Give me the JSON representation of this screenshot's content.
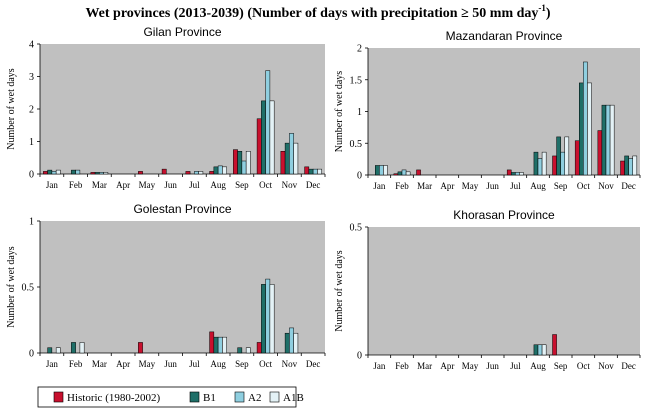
{
  "figure": {
    "title_main": "Wet provinces (2013-2039) (Number of days with precipitation ≥ 50 mm day",
    "title_sup": "-1",
    "title_end": ")"
  },
  "colors": {
    "plot_bg": "#c0c0c0",
    "Historic (1980-2002)": "#c8102e",
    "B1": "#1f6f68",
    "A2": "#8fcfe0",
    "A1B": "#e4f2f6"
  },
  "legend": {
    "items": [
      {
        "name": "Historic (1980-2002)",
        "color": "#c8102e"
      },
      {
        "name": "B1",
        "color": "#1f6f68"
      },
      {
        "name": "A2",
        "color": "#8fcfe0"
      },
      {
        "name": "A1B",
        "color": "#e4f2f6"
      }
    ]
  },
  "chart_data": [
    {
      "type": "bar",
      "title": "Gilan Province",
      "ylabel": "Number of wet days",
      "ylim": [
        0,
        4
      ],
      "yticks": [
        0,
        1,
        2,
        3,
        4
      ],
      "categories": [
        "Jan",
        "Feb",
        "Mar",
        "Apr",
        "May",
        "Jun",
        "Jul",
        "Aug",
        "Sep",
        "Oct",
        "Nov",
        "Dec"
      ],
      "series": [
        {
          "name": "Historic (1980-2002)",
          "values": [
            0.08,
            0,
            0.05,
            0,
            0.08,
            0.15,
            0.08,
            0.08,
            0.75,
            1.7,
            0.7,
            0.22
          ]
        },
        {
          "name": "B1",
          "values": [
            0.12,
            0.12,
            0.05,
            0,
            0,
            0,
            0,
            0.22,
            0.7,
            2.25,
            0.95,
            0.15
          ]
        },
        {
          "name": "A2",
          "values": [
            0.08,
            0.12,
            0.05,
            0,
            0,
            0,
            0.08,
            0.25,
            0.4,
            3.18,
            1.25,
            0.15
          ]
        },
        {
          "name": "A1B",
          "values": [
            0.12,
            0,
            0.05,
            0,
            0,
            0,
            0.08,
            0.22,
            0.7,
            2.25,
            0.95,
            0.15
          ]
        }
      ]
    },
    {
      "type": "bar",
      "title": "Mazandaran Province",
      "ylabel": "Number of wet days",
      "ylim": [
        0,
        2
      ],
      "yticks": [
        0,
        0.5,
        1,
        1.5,
        2
      ],
      "categories": [
        "Jan",
        "Feb",
        "Mar",
        "Apr",
        "May",
        "Jun",
        "Jul",
        "Aug",
        "Sep",
        "Oct",
        "Nov",
        "Dec"
      ],
      "series": [
        {
          "name": "Historic (1980-2002)",
          "values": [
            0,
            0.02,
            0.08,
            0,
            0,
            0,
            0.08,
            0,
            0.3,
            0.54,
            0.7,
            0.22
          ]
        },
        {
          "name": "B1",
          "values": [
            0.15,
            0.05,
            0,
            0,
            0,
            0,
            0.04,
            0.36,
            0.6,
            1.45,
            1.1,
            0.3
          ]
        },
        {
          "name": "A2",
          "values": [
            0.15,
            0.08,
            0,
            0,
            0,
            0,
            0.04,
            0.26,
            0.36,
            1.78,
            1.1,
            0.26
          ]
        },
        {
          "name": "A1B",
          "values": [
            0.15,
            0.05,
            0,
            0,
            0,
            0,
            0.04,
            0.36,
            0.6,
            1.45,
            1.1,
            0.3
          ]
        }
      ]
    },
    {
      "type": "bar",
      "title": "Golestan Province",
      "ylabel": "Number of wet days",
      "ylim": [
        0,
        1
      ],
      "yticks": [
        0,
        0.5,
        1
      ],
      "categories": [
        "Jan",
        "Feb",
        "Mar",
        "Apr",
        "May",
        "Jun",
        "Jul",
        "Aug",
        "Sep",
        "Oct",
        "Nov",
        "Dec"
      ],
      "series": [
        {
          "name": "Historic (1980-2002)",
          "values": [
            0,
            0,
            0,
            0,
            0.08,
            0,
            0,
            0.16,
            0,
            0.08,
            0,
            0
          ]
        },
        {
          "name": "B1",
          "values": [
            0.04,
            0.08,
            0,
            0,
            0,
            0,
            0,
            0.12,
            0.04,
            0.52,
            0.15,
            0
          ]
        },
        {
          "name": "A2",
          "values": [
            0,
            0,
            0,
            0,
            0,
            0,
            0,
            0.12,
            0,
            0.56,
            0.19,
            0
          ]
        },
        {
          "name": "A1B",
          "values": [
            0.04,
            0.08,
            0,
            0,
            0,
            0,
            0,
            0.12,
            0.04,
            0.52,
            0.15,
            0
          ]
        }
      ]
    },
    {
      "type": "bar",
      "title": "Khorasan Province",
      "ylabel": "Number of wet days",
      "ylim": [
        0,
        0.5
      ],
      "yticks": [
        0,
        0.5
      ],
      "categories": [
        "Jan",
        "Feb",
        "Mar",
        "Apr",
        "May",
        "Jun",
        "Jul",
        "Aug",
        "Sep",
        "Oct",
        "Nov",
        "Dec"
      ],
      "series": [
        {
          "name": "Historic (1980-2002)",
          "values": [
            0,
            0,
            0,
            0,
            0,
            0,
            0,
            0,
            0.08,
            0,
            0,
            0
          ]
        },
        {
          "name": "B1",
          "values": [
            0,
            0,
            0,
            0,
            0,
            0,
            0,
            0.04,
            0,
            0,
            0,
            0
          ]
        },
        {
          "name": "A2",
          "values": [
            0,
            0,
            0,
            0,
            0,
            0,
            0,
            0.04,
            0,
            0,
            0,
            0
          ]
        },
        {
          "name": "A1B",
          "values": [
            0,
            0,
            0,
            0,
            0,
            0,
            0,
            0.04,
            0,
            0,
            0,
            0
          ]
        }
      ]
    }
  ]
}
